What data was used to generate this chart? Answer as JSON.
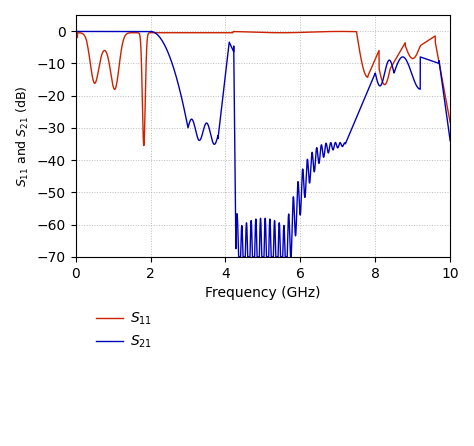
{
  "xlabel": "Frequency (GHz)",
  "ylabel": "$S_{11}$ and $S_{21}$ (dB)",
  "xlim": [
    0,
    10
  ],
  "ylim": [
    -70,
    5
  ],
  "yticks": [
    0,
    -10,
    -20,
    -30,
    -40,
    -50,
    -60,
    -70
  ],
  "xticks": [
    0,
    2,
    4,
    6,
    8,
    10
  ],
  "grid_color": "#aaaaaa",
  "s11_color": "#cc2200",
  "s21_color": "#0000bb",
  "bg_color": "#ffffff",
  "legend_s11": "$S_{11}$",
  "legend_s21": "$S_{21}$"
}
